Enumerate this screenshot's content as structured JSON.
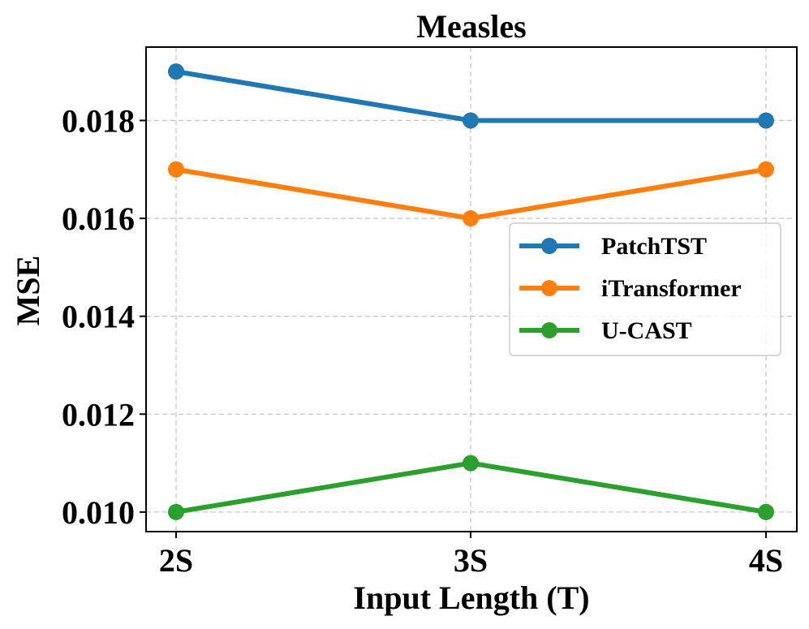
{
  "chart_data": {
    "type": "line",
    "title": "Measles",
    "xlabel": "Input Length (T)",
    "ylabel": "MSE",
    "categories": [
      "2S",
      "3S",
      "4S"
    ],
    "ylim": [
      0.0096,
      0.0195
    ],
    "yticks": [
      0.01,
      0.012,
      0.014,
      0.016,
      0.018
    ],
    "ytick_labels": [
      "0.010",
      "0.012",
      "0.014",
      "0.016",
      "0.018"
    ],
    "grid": true,
    "legend_position": "center-right",
    "series": [
      {
        "name": "PatchTST",
        "color": "#1f77b4",
        "values": [
          0.019,
          0.018,
          0.018
        ]
      },
      {
        "name": "iTransformer",
        "color": "#ff7f0e",
        "values": [
          0.017,
          0.016,
          0.017
        ]
      },
      {
        "name": "U-CAST",
        "color": "#2ca02c",
        "values": [
          0.01,
          0.011,
          0.01
        ]
      }
    ]
  }
}
